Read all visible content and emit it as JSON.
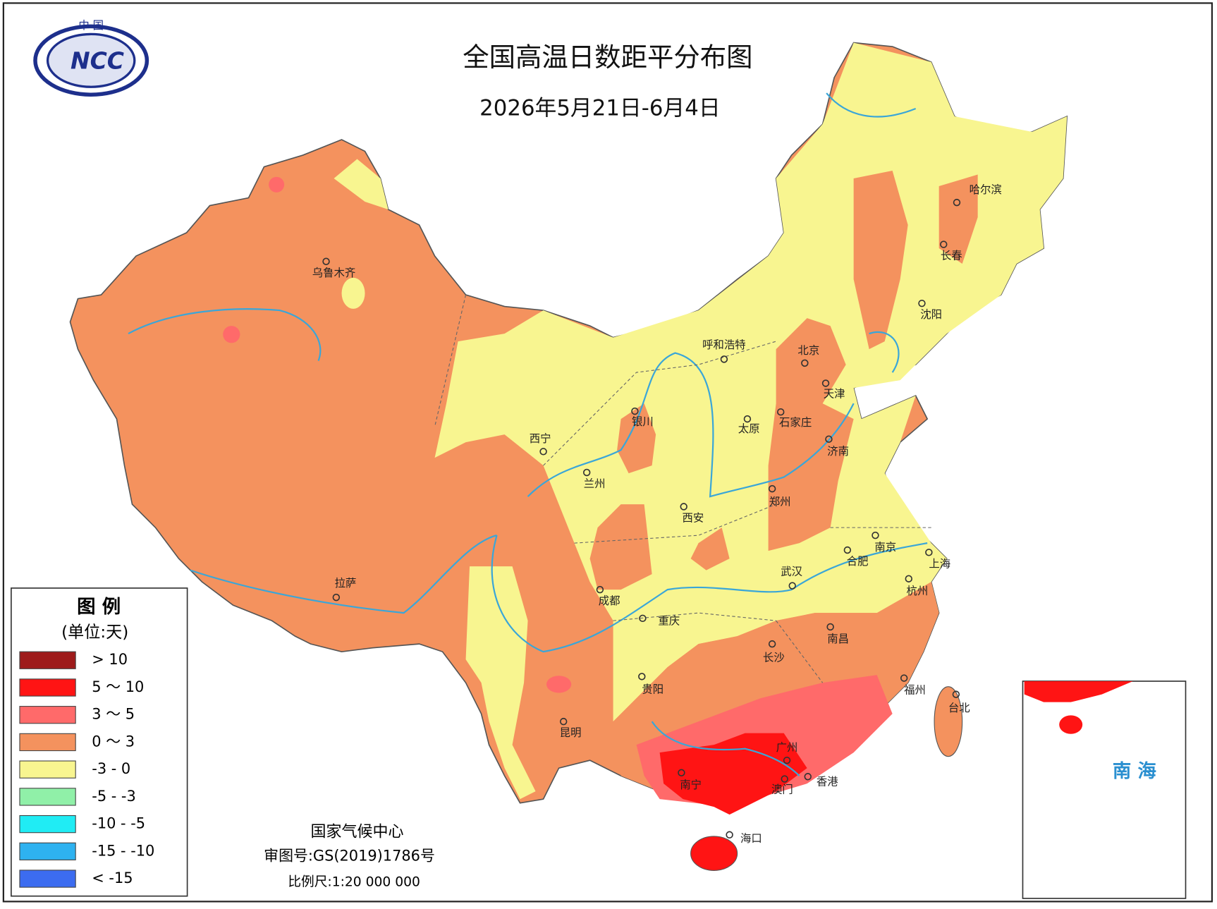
{
  "logo": {
    "top": "中 国",
    "text": "NCC"
  },
  "title": "全国高温日数距平分布图",
  "subtitle": "2026年5月21日-6月4日",
  "legend": {
    "title": "图 例",
    "unit": "(单位:天)",
    "items": [
      {
        "label": "> 10",
        "color": "#9e1b1b"
      },
      {
        "label": "5 ～ 10",
        "color": "#ff1414"
      },
      {
        "label": "3 ～ 5",
        "color": "#ff6a6a"
      },
      {
        "label": "0 ～ 3",
        "color": "#f4925e"
      },
      {
        "label": "-3 - 0",
        "color": "#f8f590"
      },
      {
        "label": "-5 - -3",
        "color": "#90f0a8"
      },
      {
        "label": "-10 - -5",
        "color": "#20ecf4"
      },
      {
        "label": "-15 - -10",
        "color": "#2eb2f0"
      },
      {
        "label": "< -15",
        "color": "#3c6cf0"
      }
    ]
  },
  "cities": [
    "乌鲁木齐",
    "拉萨",
    "西宁",
    "兰州",
    "银川",
    "呼和浩特",
    "太原",
    "北京",
    "天津",
    "石家庄",
    "济南",
    "郑州",
    "西安",
    "南京",
    "合肥",
    "上海",
    "武汉",
    "杭州",
    "成都",
    "重庆",
    "长沙",
    "南昌",
    "贵阳",
    "福州",
    "昆明",
    "南宁",
    "广州",
    "澳门",
    "香港",
    "海口",
    "哈尔滨",
    "长春",
    "沈阳",
    "台北"
  ],
  "footer": {
    "org": "国家气候中心",
    "approval": "审图号:GS(2019)1786号",
    "scale": "比例尺:1:20 000 000"
  },
  "inset": {
    "label": "南 海"
  }
}
